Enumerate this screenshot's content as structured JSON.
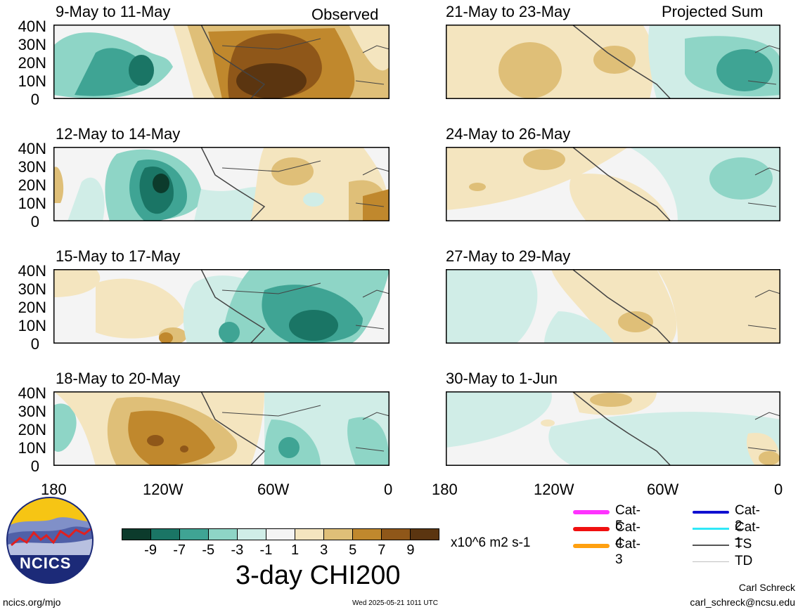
{
  "panels": {
    "left_header": "Observed",
    "right_header": "Projected Sum",
    "left": [
      "9-May to 11-May",
      "12-May to 14-May",
      "15-May to 17-May",
      "18-May to 20-May"
    ],
    "right": [
      "21-May to 23-May",
      "24-May to 26-May",
      "27-May to 29-May",
      "30-May to 1-Jun"
    ]
  },
  "y_ticks": [
    "40N",
    "30N",
    "20N",
    "10N",
    "0"
  ],
  "x_ticks": [
    "180",
    "120W",
    "60W",
    "0"
  ],
  "colorbar": {
    "labels": [
      "-9",
      "-7",
      "-5",
      "-3",
      "-1",
      "1",
      "3",
      "5",
      "7",
      "9"
    ],
    "colors": [
      "#0c3b2c",
      "#1a7565",
      "#3fa494",
      "#8ed5c6",
      "#d0ede7",
      "#f4f4f4",
      "#f4e5bf",
      "#dfbf78",
      "#c0882d",
      "#8f5719",
      "#5b3510"
    ],
    "units": "x10^6 m2 s-1",
    "title": "3-day CHI200"
  },
  "legend": {
    "col1": [
      {
        "label": "Cat-5",
        "color": "#ff33ff"
      },
      {
        "label": "Cat-4",
        "color": "#f01010"
      },
      {
        "label": "Cat-3",
        "color": "#ffa010"
      }
    ],
    "col2": [
      {
        "label": "Cat-2",
        "color": "#1010d0"
      },
      {
        "label": "Cat-1",
        "color": "#30e8f8"
      },
      {
        "label": "TS",
        "color": "#555555"
      },
      {
        "label": "TD",
        "color": "#c0c0c0"
      }
    ]
  },
  "logo": {
    "text": "NCICS"
  },
  "footer": {
    "url": "ncics.org/mjo",
    "timestamp": "Wed 2025-05-21 1011 UTC",
    "author": "Carl Schreck",
    "email": "carl_schreck@ncsu.edu"
  }
}
